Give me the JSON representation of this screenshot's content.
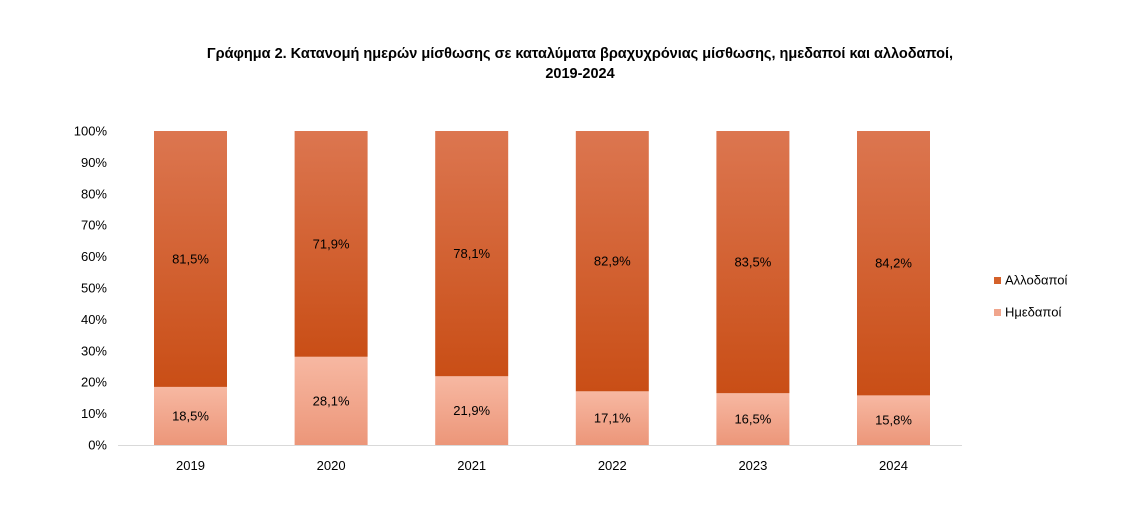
{
  "chart_data": {
    "type": "bar",
    "stacked": true,
    "title_line1": "Γράφημα 2. Κατανομή ημερών μίσθωσης σε καταλύματα βραχυχρόνιας μίσθωσης, ημεδαποί και αλλοδαποί,",
    "title_line2": "2019-2024",
    "categories": [
      "2019",
      "2020",
      "2021",
      "2022",
      "2023",
      "2024"
    ],
    "y_ticks": [
      "0%",
      "10%",
      "20%",
      "30%",
      "40%",
      "50%",
      "60%",
      "70%",
      "80%",
      "90%",
      "100%"
    ],
    "ylim": [
      0,
      100
    ],
    "grid": false,
    "legend_position": "right",
    "series": [
      {
        "name": "Ημεδαποί",
        "color": "#f0a58c",
        "values": [
          18.5,
          28.1,
          21.9,
          17.1,
          16.5,
          15.8
        ],
        "labels": [
          "18,5%",
          "28,1%",
          "21,9%",
          "17,1%",
          "16,5%",
          "15,8%"
        ]
      },
      {
        "name": "Αλλοδαποί",
        "color": "#d4612a",
        "values": [
          81.5,
          71.9,
          78.1,
          82.9,
          83.5,
          84.2
        ],
        "labels": [
          "81,5%",
          "71,9%",
          "78,1%",
          "82,9%",
          "83,5%",
          "84,2%"
        ]
      }
    ]
  }
}
